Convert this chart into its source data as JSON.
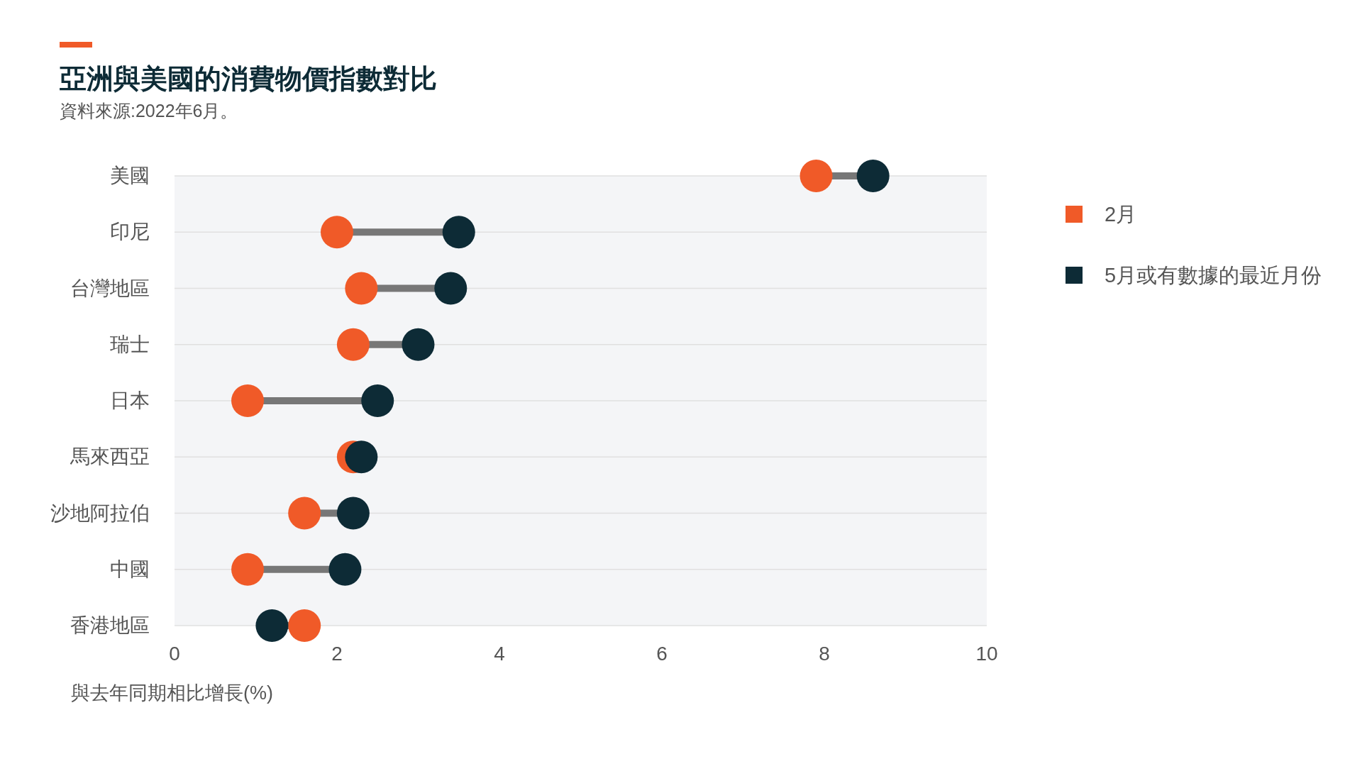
{
  "chart_data": {
    "type": "scatter",
    "orientation": "horizontal",
    "title": "亞洲與美國的消費物價指數對比",
    "subtitle": "資料來源:2022年6月。",
    "xlabel": "與去年同期相比增長(%)",
    "categories": [
      "美國",
      "印尼",
      "台灣地區",
      "瑞士",
      "日本",
      "馬來西亞",
      "沙地阿拉伯",
      "中國",
      "香港地區"
    ],
    "series": [
      {
        "name": "2月",
        "color": "#f05a28",
        "values": [
          7.9,
          2.0,
          2.3,
          2.2,
          0.9,
          2.2,
          1.6,
          0.9,
          1.6
        ]
      },
      {
        "name": "5月或有數據的最近月份",
        "color": "#0d2b36",
        "values": [
          8.6,
          3.5,
          3.4,
          3.0,
          2.5,
          2.3,
          2.2,
          2.1,
          1.2
        ]
      }
    ],
    "xlim": [
      0,
      10
    ],
    "xticks": [
      0,
      2,
      4,
      6,
      8,
      10
    ],
    "grid": "y",
    "legend": "right",
    "marker": "circle"
  }
}
